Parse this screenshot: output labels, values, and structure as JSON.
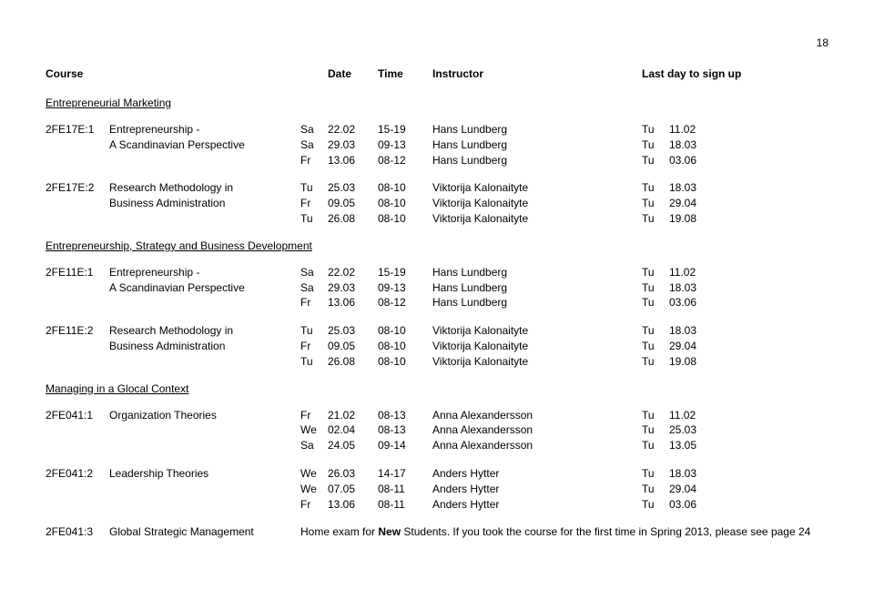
{
  "page_number": "18",
  "header": {
    "course": "Course",
    "date": "Date",
    "time": "Time",
    "instructor": "Instructor",
    "last_day": "Last day to sign up"
  },
  "sections": [
    {
      "title": "Entrepreneurial Marketing",
      "courses": [
        {
          "code": "2FE17E:1",
          "name_lines": [
            "Entrepreneurship -",
            "A Scandinavian Perspective"
          ],
          "rows": [
            {
              "day": "Sa",
              "date": "22.02",
              "time": "15-19",
              "instr": "Hans Lundberg",
              "lday": "Tu",
              "ldate": "11.02"
            },
            {
              "day": "Sa",
              "date": "29.03",
              "time": "09-13",
              "instr": "Hans Lundberg",
              "lday": "Tu",
              "ldate": "18.03"
            },
            {
              "day": "Fr",
              "date": "13.06",
              "time": "08-12",
              "instr": "Hans Lundberg",
              "lday": "Tu",
              "ldate": "03.06"
            }
          ]
        },
        {
          "code": "2FE17E:2",
          "name_lines": [
            "Research Methodology in",
            "Business Administration"
          ],
          "rows": [
            {
              "day": "Tu",
              "date": "25.03",
              "time": "08-10",
              "instr": "Viktorija Kalonaityte",
              "lday": "Tu",
              "ldate": "18.03"
            },
            {
              "day": "Fr",
              "date": "09.05",
              "time": "08-10",
              "instr": "Viktorija Kalonaityte",
              "lday": "Tu",
              "ldate": "29.04"
            },
            {
              "day": "Tu",
              "date": "26.08",
              "time": "08-10",
              "instr": "Viktorija Kalonaityte",
              "lday": "Tu",
              "ldate": "19.08"
            }
          ]
        }
      ]
    },
    {
      "title": "Entrepreneurship, Strategy and Business Development",
      "courses": [
        {
          "code": "2FE11E:1",
          "name_lines": [
            "Entrepreneurship -",
            "A Scandinavian Perspective"
          ],
          "rows": [
            {
              "day": "Sa",
              "date": "22.02",
              "time": "15-19",
              "instr": "Hans Lundberg",
              "lday": "Tu",
              "ldate": "11.02"
            },
            {
              "day": "Sa",
              "date": "29.03",
              "time": "09-13",
              "instr": "Hans Lundberg",
              "lday": "Tu",
              "ldate": "18.03"
            },
            {
              "day": "Fr",
              "date": "13.06",
              "time": "08-12",
              "instr": "Hans Lundberg",
              "lday": "Tu",
              "ldate": "03.06"
            }
          ]
        },
        {
          "code": "2FE11E:2",
          "name_lines": [
            "Research Methodology in",
            "Business Administration"
          ],
          "rows": [
            {
              "day": "Tu",
              "date": "25.03",
              "time": "08-10",
              "instr": "Viktorija Kalonaityte",
              "lday": "Tu",
              "ldate": "18.03"
            },
            {
              "day": "Fr",
              "date": "09.05",
              "time": "08-10",
              "instr": "Viktorija Kalonaityte",
              "lday": "Tu",
              "ldate": "29.04"
            },
            {
              "day": "Tu",
              "date": "26.08",
              "time": "08-10",
              "instr": "Viktorija Kalonaityte",
              "lday": "Tu",
              "ldate": "19.08"
            }
          ]
        }
      ]
    },
    {
      "title": "Managing in a Glocal Context",
      "courses": [
        {
          "code": "2FE041:1",
          "name_lines": [
            "Organization Theories"
          ],
          "rows": [
            {
              "day": "Fr",
              "date": "21.02",
              "time": "08-13",
              "instr": "Anna Alexandersson",
              "lday": "Tu",
              "ldate": "11.02"
            },
            {
              "day": "We",
              "date": "02.04",
              "time": "08-13",
              "instr": "Anna Alexandersson",
              "lday": "Tu",
              "ldate": "25.03"
            },
            {
              "day": "Sa",
              "date": "24.05",
              "time": "09-14",
              "instr": "Anna Alexandersson",
              "lday": "Tu",
              "ldate": "13.05"
            }
          ]
        },
        {
          "code": "2FE041:2",
          "name_lines": [
            "Leadership Theories"
          ],
          "rows": [
            {
              "day": "We",
              "date": "26.03",
              "time": "14-17",
              "instr": "Anders Hytter",
              "lday": "Tu",
              "ldate": "18.03"
            },
            {
              "day": "We",
              "date": "07.05",
              "time": "08-11",
              "instr": "Anders Hytter",
              "lday": "Tu",
              "ldate": "29.04"
            },
            {
              "day": "Fr",
              "date": "13.06",
              "time": "08-11",
              "instr": "Anders Hytter",
              "lday": "Tu",
              "ldate": "03.06"
            }
          ]
        }
      ],
      "note_course": {
        "code": "2FE041:3",
        "name": "Global Strategic Management",
        "note_pre": "Home exam for ",
        "note_bold": "New",
        "note_post": " Students. If you took the course for the first time in Spring 2013, please see page 24"
      }
    }
  ]
}
